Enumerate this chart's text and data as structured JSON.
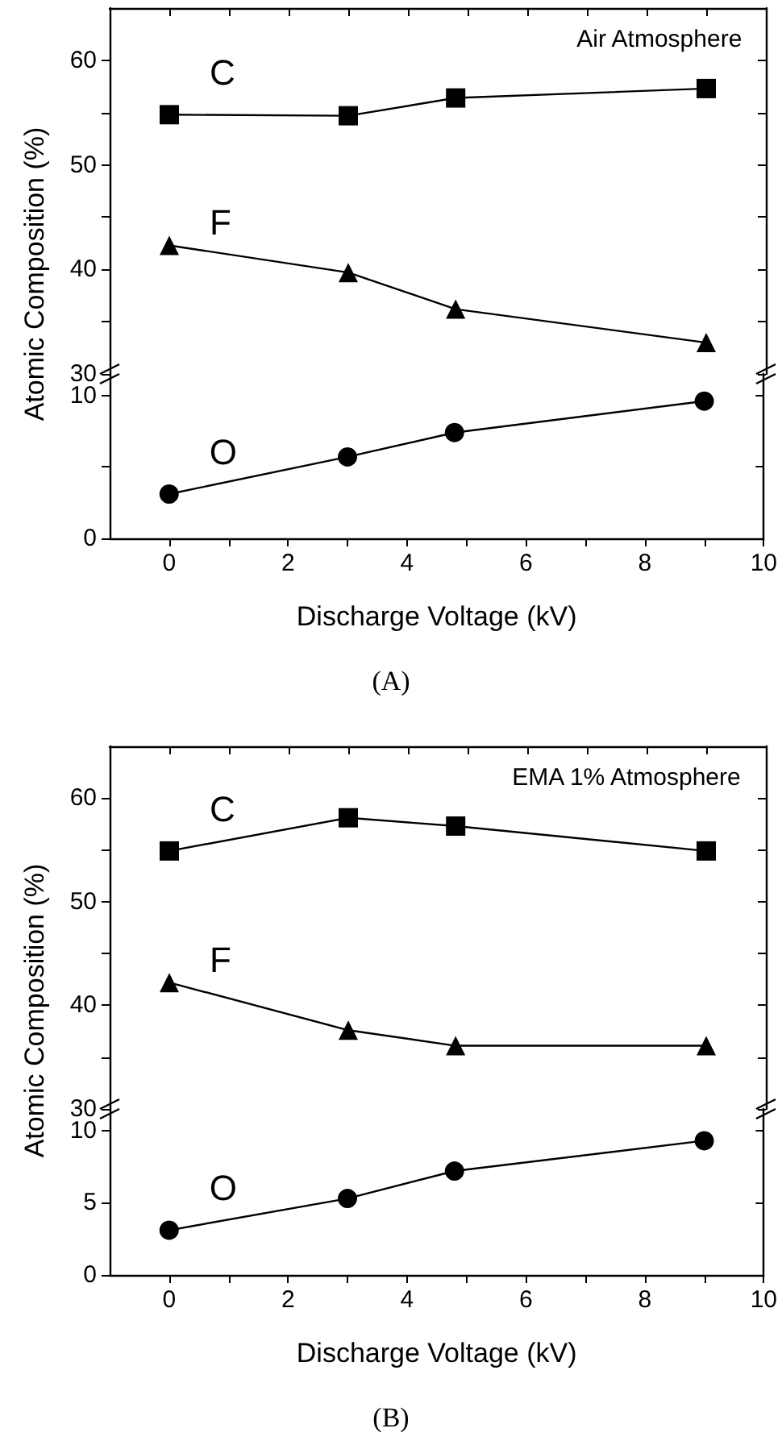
{
  "chart_data": [
    {
      "type": "line",
      "ylabel": "Atomic Composition (%)",
      "annotations": [
        "Air Atmosphere"
      ],
      "legend": "left",
      "x": [
        0,
        3,
        4.8,
        9
      ],
      "xlim": [
        -1,
        10
      ],
      "xticks": [
        0,
        {
          "value": 1,
          "label": null
        },
        2,
        {
          "value": 3,
          "label": null
        },
        4,
        {
          "value": 5,
          "label": null
        },
        6,
        {
          "value": 7,
          "label": null
        },
        8,
        {
          "value": 9,
          "label": null
        },
        10
      ],
      "ylim": [
        30,
        65
      ],
      "yticks": [
        30,
        {
          "value": 35,
          "label": null
        },
        40,
        {
          "value": 45,
          "label": null
        },
        50,
        {
          "value": 55,
          "label": null
        },
        60
      ],
      "tick_labels": "y",
      "grid": false,
      "line_style": "solid",
      "series": [
        {
          "name": "C",
          "color": "#000000",
          "marker": "square",
          "values": [
            54.8,
            54.7,
            56.4,
            57.3
          ]
        },
        {
          "name": "F",
          "color": "#000000",
          "marker": "triangle",
          "values": [
            42.3,
            39.7,
            36.2,
            33.0
          ]
        }
      ]
    },
    {
      "type": "line",
      "xlabel": "Discharge Voltage (kV)",
      "annotations": [
        "(A)"
      ],
      "x": [
        0,
        3,
        4.8,
        9
      ],
      "xlim": [
        -1,
        10
      ],
      "xticks": [
        0,
        {
          "value": 1,
          "label": null
        },
        2,
        {
          "value": 3,
          "label": null
        },
        4,
        {
          "value": 5,
          "label": null
        },
        6,
        {
          "value": 7,
          "label": null
        },
        8,
        {
          "value": 9,
          "label": null
        },
        10
      ],
      "ylim": [
        0,
        11.5
      ],
      "yticks": [
        0,
        {
          "value": 5,
          "label": null
        },
        10
      ],
      "grid": false,
      "line_style": "solid",
      "series": [
        {
          "name": "O",
          "color": "#000000",
          "marker": "circle",
          "values": [
            3.1,
            5.7,
            7.4,
            9.6
          ]
        }
      ]
    },
    {
      "type": "line",
      "ylabel": "Atomic Composition (%)",
      "annotations": [
        "EMA 1% Atmosphere"
      ],
      "legend": "left",
      "x": [
        0,
        3,
        4.8,
        9
      ],
      "xlim": [
        -1,
        10
      ],
      "xticks": [
        0,
        {
          "value": 1,
          "label": null
        },
        2,
        {
          "value": 3,
          "label": null
        },
        4,
        {
          "value": 5,
          "label": null
        },
        6,
        {
          "value": 7,
          "label": null
        },
        8,
        {
          "value": 9,
          "label": null
        },
        10
      ],
      "ylim": [
        30,
        65
      ],
      "yticks": [
        30,
        {
          "value": 35,
          "label": null
        },
        40,
        {
          "value": 45,
          "label": null
        },
        50,
        {
          "value": 55,
          "label": null
        },
        60
      ],
      "tick_labels": "y",
      "grid": false,
      "line_style": "solid",
      "series": [
        {
          "name": "C",
          "color": "#000000",
          "marker": "square",
          "values": [
            54.9,
            58.1,
            57.3,
            54.9
          ]
        },
        {
          "name": "F",
          "color": "#000000",
          "marker": "triangle",
          "values": [
            42.2,
            37.6,
            36.1,
            36.1
          ]
        }
      ]
    },
    {
      "type": "line",
      "xlabel": "Discharge Voltage (kV)",
      "annotations": [
        "(B)"
      ],
      "x": [
        0,
        3,
        4.8,
        9
      ],
      "xlim": [
        -1,
        10
      ],
      "xticks": [
        0,
        {
          "value": 1,
          "label": null
        },
        2,
        {
          "value": 3,
          "label": null
        },
        4,
        {
          "value": 5,
          "label": null
        },
        6,
        {
          "value": 7,
          "label": null
        },
        8,
        {
          "value": 9,
          "label": null
        },
        10
      ],
      "ylim": [
        0,
        11.5
      ],
      "yticks": [
        0,
        5,
        10
      ],
      "grid": false,
      "line_style": "solid",
      "series": [
        {
          "name": "O",
          "color": "#000000",
          "marker": "circle",
          "values": [
            3.1,
            5.3,
            7.2,
            9.3
          ]
        }
      ]
    }
  ]
}
